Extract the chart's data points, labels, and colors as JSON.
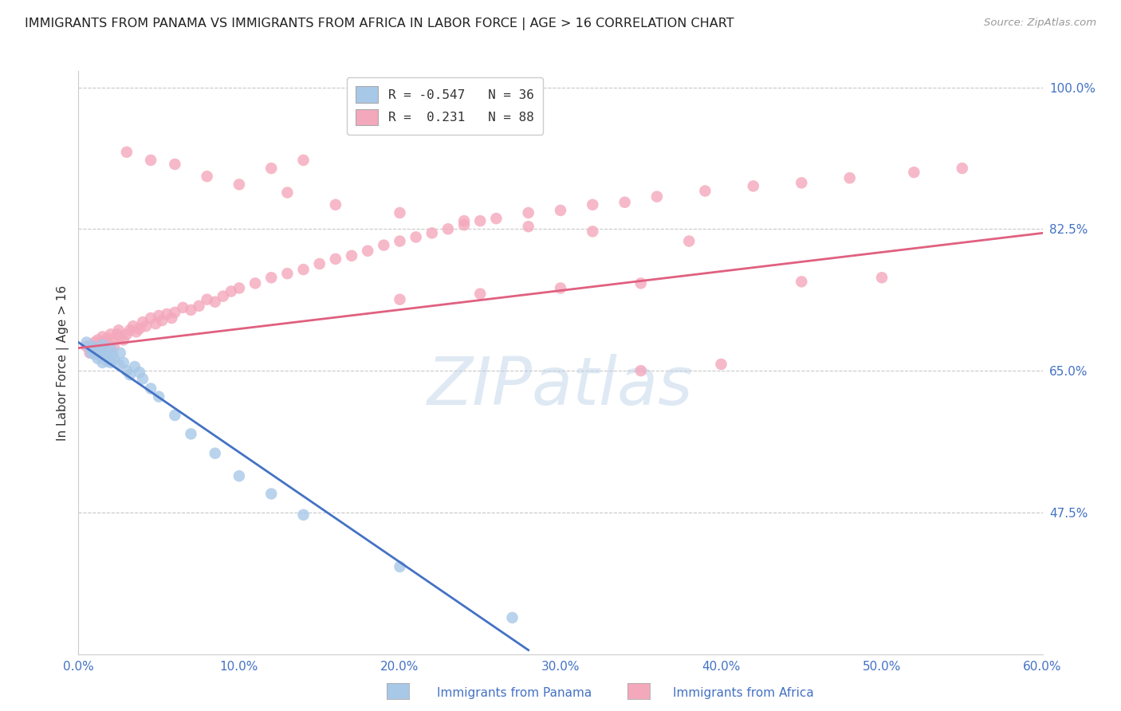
{
  "title": "IMMIGRANTS FROM PANAMA VS IMMIGRANTS FROM AFRICA IN LABOR FORCE | AGE > 16 CORRELATION CHART",
  "source": "Source: ZipAtlas.com",
  "ylabel": "In Labor Force | Age > 16",
  "xlim": [
    0.0,
    0.6
  ],
  "ylim": [
    0.3,
    1.02
  ],
  "xtick_labels": [
    "0.0%",
    "10.0%",
    "20.0%",
    "30.0%",
    "40.0%",
    "50.0%",
    "60.0%"
  ],
  "xtick_vals": [
    0.0,
    0.1,
    0.2,
    0.3,
    0.4,
    0.5,
    0.6
  ],
  "ytick_labels": [
    "100.0%",
    "82.5%",
    "65.0%",
    "47.5%"
  ],
  "ytick_vals": [
    1.0,
    0.825,
    0.65,
    0.475
  ],
  "legend_line1": "R = -0.547   N = 36",
  "legend_line2": "R =  0.231   N = 88",
  "panama_color": "#a8c8e8",
  "africa_color": "#f4a8bc",
  "panama_line_color": "#4472c4",
  "africa_line_color": "#e06080",
  "watermark": "ZIPatlas",
  "background_color": "#ffffff",
  "grid_color": "#c8c8c8",
  "panama_line_x": [
    0.0,
    0.28
  ],
  "panama_line_y": [
    0.685,
    0.305
  ],
  "africa_line_x": [
    0.0,
    0.6
  ],
  "africa_line_y": [
    0.678,
    0.82
  ],
  "panama_x": [
    0.005,
    0.007,
    0.008,
    0.009,
    0.01,
    0.01,
    0.012,
    0.013,
    0.014,
    0.015,
    0.015,
    0.016,
    0.017,
    0.018,
    0.02,
    0.02,
    0.021,
    0.022,
    0.025,
    0.026,
    0.028,
    0.03,
    0.032,
    0.035,
    0.038,
    0.04,
    0.045,
    0.05,
    0.06,
    0.07,
    0.085,
    0.1,
    0.12,
    0.14,
    0.2,
    0.27
  ],
  "panama_y": [
    0.685,
    0.678,
    0.672,
    0.68,
    0.67,
    0.675,
    0.665,
    0.672,
    0.668,
    0.682,
    0.66,
    0.675,
    0.668,
    0.662,
    0.678,
    0.66,
    0.67,
    0.665,
    0.658,
    0.672,
    0.66,
    0.65,
    0.645,
    0.655,
    0.648,
    0.64,
    0.628,
    0.618,
    0.595,
    0.572,
    0.548,
    0.52,
    0.498,
    0.472,
    0.408,
    0.345
  ],
  "africa_x": [
    0.005,
    0.007,
    0.008,
    0.01,
    0.012,
    0.013,
    0.014,
    0.015,
    0.016,
    0.018,
    0.02,
    0.021,
    0.022,
    0.024,
    0.025,
    0.026,
    0.028,
    0.03,
    0.032,
    0.034,
    0.036,
    0.038,
    0.04,
    0.042,
    0.045,
    0.048,
    0.05,
    0.052,
    0.055,
    0.058,
    0.06,
    0.065,
    0.07,
    0.075,
    0.08,
    0.085,
    0.09,
    0.095,
    0.1,
    0.11,
    0.12,
    0.13,
    0.14,
    0.15,
    0.16,
    0.17,
    0.18,
    0.19,
    0.2,
    0.21,
    0.22,
    0.23,
    0.24,
    0.25,
    0.26,
    0.28,
    0.3,
    0.32,
    0.34,
    0.36,
    0.39,
    0.42,
    0.45,
    0.48,
    0.52,
    0.55,
    0.03,
    0.045,
    0.06,
    0.08,
    0.1,
    0.13,
    0.16,
    0.2,
    0.24,
    0.28,
    0.32,
    0.38,
    0.2,
    0.25,
    0.3,
    0.35,
    0.12,
    0.14,
    0.45,
    0.5,
    0.35,
    0.4
  ],
  "africa_y": [
    0.68,
    0.672,
    0.678,
    0.685,
    0.688,
    0.68,
    0.675,
    0.692,
    0.685,
    0.69,
    0.695,
    0.688,
    0.68,
    0.695,
    0.7,
    0.692,
    0.688,
    0.695,
    0.7,
    0.705,
    0.698,
    0.702,
    0.71,
    0.705,
    0.715,
    0.708,
    0.718,
    0.712,
    0.72,
    0.715,
    0.722,
    0.728,
    0.725,
    0.73,
    0.738,
    0.735,
    0.742,
    0.748,
    0.752,
    0.758,
    0.765,
    0.77,
    0.775,
    0.782,
    0.788,
    0.792,
    0.798,
    0.805,
    0.81,
    0.815,
    0.82,
    0.825,
    0.83,
    0.835,
    0.838,
    0.845,
    0.848,
    0.855,
    0.858,
    0.865,
    0.872,
    0.878,
    0.882,
    0.888,
    0.895,
    0.9,
    0.92,
    0.91,
    0.905,
    0.89,
    0.88,
    0.87,
    0.855,
    0.845,
    0.835,
    0.828,
    0.822,
    0.81,
    0.738,
    0.745,
    0.752,
    0.758,
    0.9,
    0.91,
    0.76,
    0.765,
    0.65,
    0.658
  ]
}
